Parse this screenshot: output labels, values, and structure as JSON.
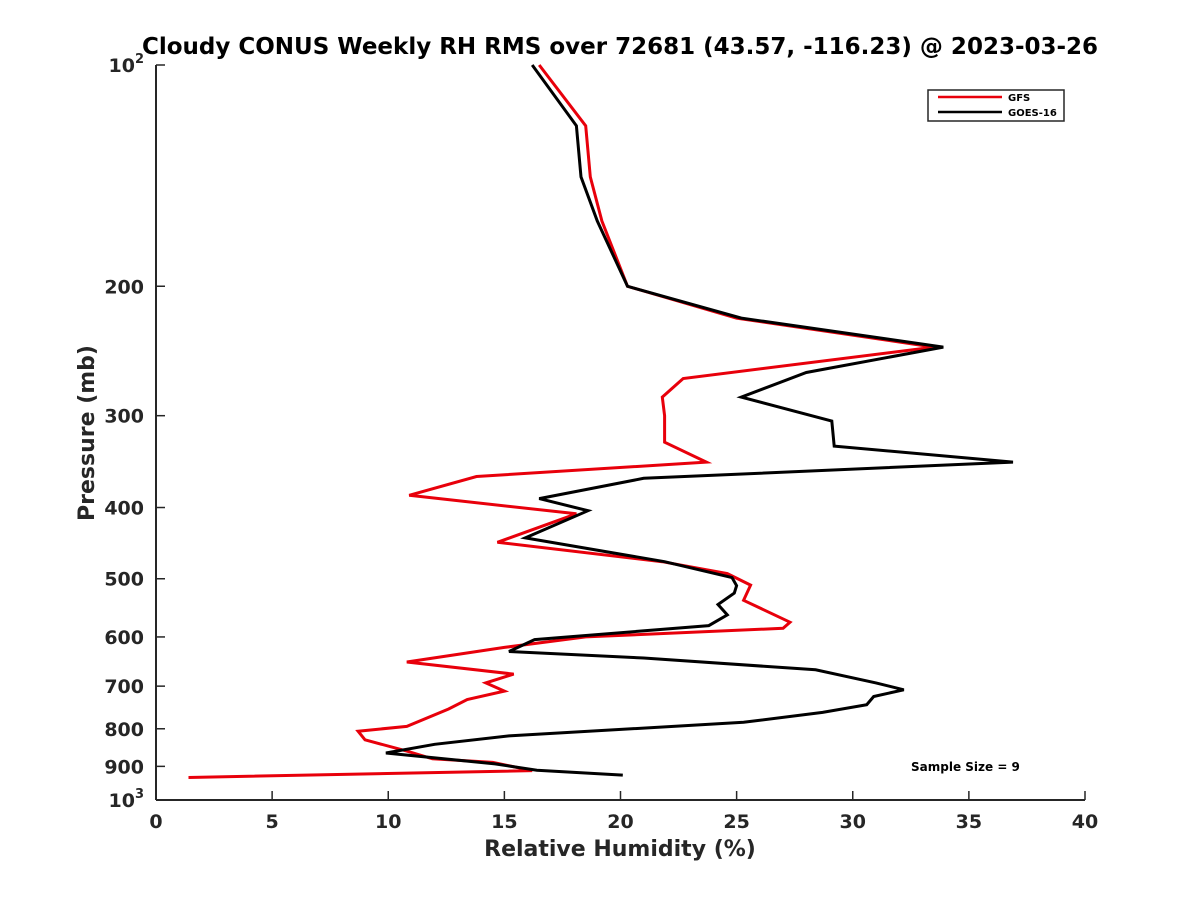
{
  "chart_data": {
    "type": "line",
    "title": "Cloudy CONUS Weekly RH RMS over 72681 (43.57, -116.23) @ 2023-03-26",
    "xlabel": "Relative Humidity (%)",
    "ylabel": "Pressure (mb)",
    "xlim": [
      0,
      40
    ],
    "ylim": [
      100,
      1000
    ],
    "y_scale": "log",
    "y_reversed": true,
    "x_ticks": [
      0,
      5,
      10,
      15,
      20,
      25,
      30,
      35,
      40
    ],
    "x_tick_labels": [
      "0",
      "5",
      "10",
      "15",
      "20",
      "25",
      "30",
      "35",
      "40"
    ],
    "y_ticks": [
      100,
      200,
      300,
      400,
      500,
      600,
      700,
      800,
      900,
      1000
    ],
    "y_tick_labels": [
      {
        "base": "10",
        "exp": "2"
      },
      {
        "base": "200",
        "exp": ""
      },
      {
        "base": "300",
        "exp": ""
      },
      {
        "base": "400",
        "exp": ""
      },
      {
        "base": "500",
        "exp": ""
      },
      {
        "base": "600",
        "exp": ""
      },
      {
        "base": "700",
        "exp": ""
      },
      {
        "base": "800",
        "exp": ""
      },
      {
        "base": "900",
        "exp": ""
      },
      {
        "base": "10",
        "exp": "3"
      }
    ],
    "grid": false,
    "legend_position": "top-right",
    "annotation": "Sample Size = 9",
    "series": [
      {
        "name": "GFS",
        "color": "#e8000b",
        "points": [
          [
            16.5,
            100
          ],
          [
            18.5,
            121
          ],
          [
            18.7,
            142
          ],
          [
            19.2,
            163
          ],
          [
            20.3,
            200
          ],
          [
            25.0,
            221
          ],
          [
            33.5,
            242
          ],
          [
            22.7,
            267
          ],
          [
            21.8,
            283
          ],
          [
            21.9,
            300
          ],
          [
            21.9,
            326
          ],
          [
            23.7,
            347
          ],
          [
            13.8,
            363
          ],
          [
            10.9,
            385
          ],
          [
            18.1,
            408
          ],
          [
            14.7,
            446
          ],
          [
            21.8,
            474
          ],
          [
            24.6,
            492
          ],
          [
            25.6,
            510
          ],
          [
            25.3,
            535
          ],
          [
            27.3,
            573
          ],
          [
            27.0,
            584
          ],
          [
            18.5,
            600
          ],
          [
            15.0,
            620
          ],
          [
            10.8,
            649
          ],
          [
            15.4,
            674
          ],
          [
            14.2,
            693
          ],
          [
            15.0,
            711
          ],
          [
            13.4,
            730
          ],
          [
            12.6,
            752
          ],
          [
            10.8,
            794
          ],
          [
            8.7,
            806
          ],
          [
            9.0,
            828
          ],
          [
            10.8,
            858
          ],
          [
            11.9,
            879
          ],
          [
            14.5,
            889
          ],
          [
            16.2,
            912
          ],
          [
            1.4,
            932
          ]
        ]
      },
      {
        "name": "GOES-16",
        "color": "#000000",
        "points": [
          [
            16.2,
            100
          ],
          [
            18.1,
            121
          ],
          [
            18.3,
            142
          ],
          [
            19.0,
            163
          ],
          [
            20.3,
            200
          ],
          [
            25.2,
            221
          ],
          [
            33.9,
            242
          ],
          [
            28.0,
            262
          ],
          [
            25.2,
            283
          ],
          [
            29.1,
            305
          ],
          [
            29.2,
            330
          ],
          [
            36.9,
            347
          ],
          [
            21.0,
            365
          ],
          [
            16.5,
            389
          ],
          [
            18.6,
            404
          ],
          [
            15.9,
            440
          ],
          [
            21.9,
            474
          ],
          [
            24.8,
            498
          ],
          [
            25.0,
            511
          ],
          [
            24.9,
            523
          ],
          [
            24.2,
            542
          ],
          [
            24.6,
            560
          ],
          [
            23.8,
            579
          ],
          [
            16.3,
            605
          ],
          [
            15.2,
            628
          ],
          [
            21.0,
            641
          ],
          [
            28.4,
            665
          ],
          [
            31.0,
            693
          ],
          [
            32.2,
            708
          ],
          [
            30.9,
            723
          ],
          [
            30.6,
            742
          ],
          [
            28.7,
            760
          ],
          [
            25.3,
            784
          ],
          [
            15.2,
            818
          ],
          [
            12.0,
            840
          ],
          [
            9.9,
            863
          ],
          [
            14.6,
            893
          ],
          [
            16.4,
            911
          ],
          [
            20.1,
            925
          ]
        ]
      }
    ]
  }
}
